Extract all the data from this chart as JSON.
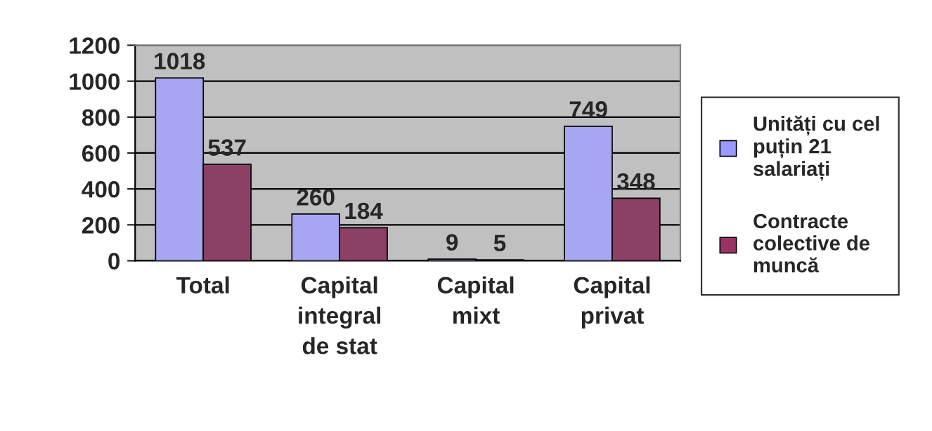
{
  "chart_data": {
    "type": "bar",
    "categories": [
      "Total",
      "Capital integral de stat",
      "Capital mixt",
      "Capital privat"
    ],
    "series": [
      {
        "name": "Unități cu cel puțin 21 salariați",
        "color": "#9999ff",
        "values": [
          1018,
          260,
          9,
          749
        ]
      },
      {
        "name": "Contracte colective de muncă",
        "color": "#993366",
        "values": [
          537,
          184,
          5,
          348
        ]
      }
    ],
    "ylim": [
      0,
      1200
    ],
    "yticks": [
      0,
      200,
      400,
      600,
      800,
      1000,
      1200
    ],
    "grid": "y",
    "legend": "right",
    "data_labels": true
  }
}
